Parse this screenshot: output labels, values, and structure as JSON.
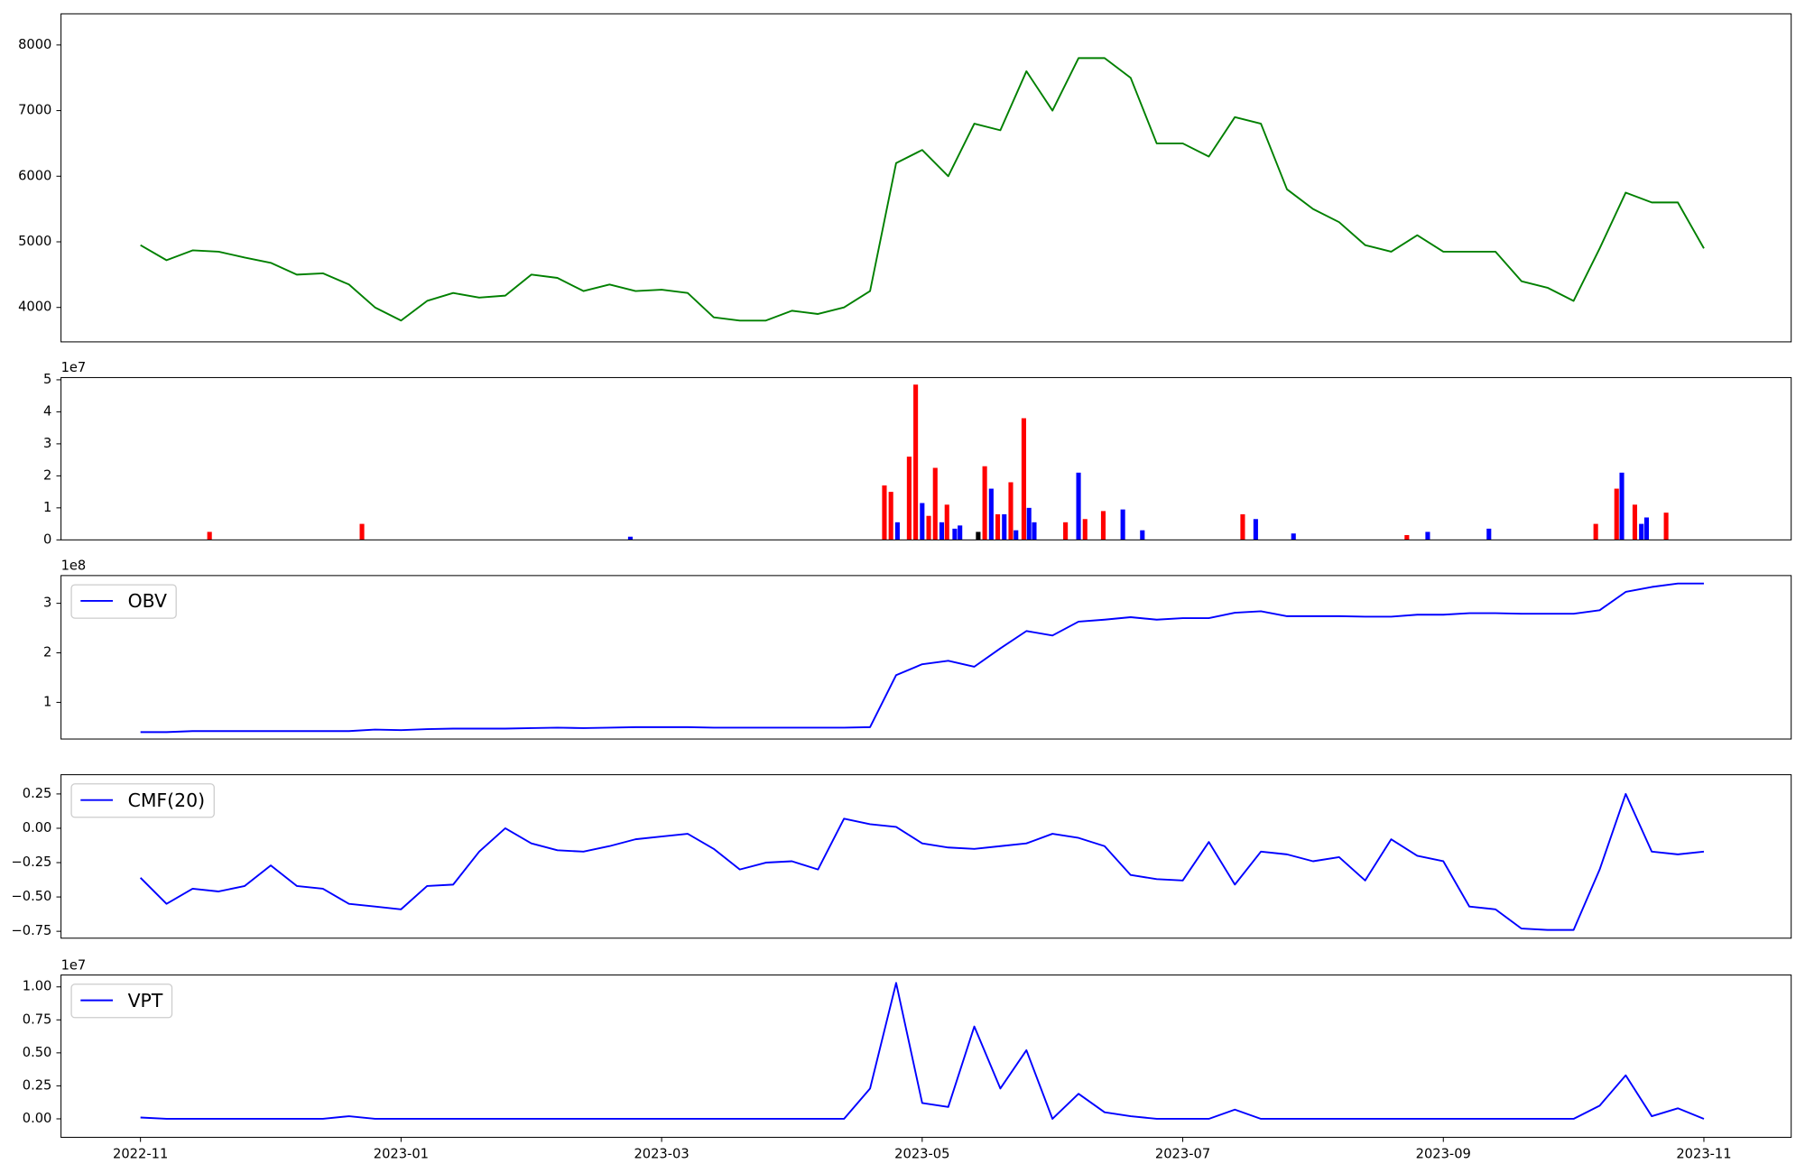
{
  "chart_data": [
    {
      "type": "line",
      "x": [
        0,
        0.2,
        0.4,
        0.6,
        0.8,
        1,
        1.2,
        1.4,
        1.6,
        1.8,
        2,
        2.2,
        2.4,
        2.6,
        2.8,
        3,
        3.2,
        3.4,
        3.6,
        3.8,
        4,
        4.2,
        4.4,
        4.6,
        4.8,
        5,
        5.2,
        5.4,
        5.6,
        5.8,
        6,
        6.2,
        6.4,
        6.6,
        6.8,
        7,
        7.2,
        7.4,
        7.6,
        7.8,
        8,
        8.2,
        8.4,
        8.6,
        8.8,
        9,
        9.2,
        9.4,
        9.6,
        9.8,
        10,
        10.2,
        10.4,
        10.6,
        10.8,
        11,
        11.2,
        11.4,
        11.6,
        11.8,
        12
      ],
      "series": [
        {
          "color": "#008000",
          "values": [
            4950,
            4720,
            4870,
            4850,
            4760,
            4680,
            4500,
            4520,
            4350,
            4000,
            3800,
            4100,
            4220,
            4150,
            4180,
            4500,
            4450,
            4250,
            4350,
            4250,
            4270,
            4220,
            3850,
            3800,
            3800,
            3950,
            3900,
            4000,
            4250,
            6200,
            6400,
            6000,
            6800,
            6700,
            7600,
            7000,
            7800,
            7800,
            7500,
            6500,
            6500,
            6300,
            6900,
            6800,
            5800,
            5500,
            5300,
            4950,
            4850,
            5100,
            4850,
            4850,
            4850,
            4400,
            4300,
            4100,
            4900,
            5750,
            5600,
            5600,
            4900
          ]
        }
      ],
      "xlim": [
        -0.61,
        12.67
      ],
      "ylim": [
        3475,
        8475
      ],
      "yticks": [
        4000,
        5000,
        6000,
        7000,
        8000
      ]
    },
    {
      "type": "bar",
      "offset_label": "1e7",
      "x": [
        0.53,
        1.7,
        3.76,
        5.71,
        5.76,
        5.81,
        5.9,
        5.95,
        6.0,
        6.05,
        6.1,
        6.15,
        6.19,
        6.25,
        6.29,
        6.43,
        6.48,
        6.53,
        6.58,
        6.63,
        6.68,
        6.72,
        6.78,
        6.82,
        6.86,
        7.1,
        7.2,
        7.25,
        7.39,
        7.54,
        7.69,
        8.46,
        8.56,
        8.85,
        9.72,
        9.88,
        10.35,
        11.17,
        11.33,
        11.37,
        11.47,
        11.52,
        11.56,
        11.71
      ],
      "values": [
        0.25,
        0.5,
        0.1,
        1.7,
        1.5,
        0.55,
        2.6,
        4.85,
        1.15,
        0.75,
        2.25,
        0.55,
        1.1,
        0.35,
        0.45,
        0.25,
        2.3,
        1.6,
        0.8,
        0.8,
        1.8,
        0.3,
        3.8,
        1.0,
        0.55,
        0.55,
        2.1,
        0.65,
        0.9,
        0.95,
        0.3,
        0.8,
        0.65,
        0.2,
        0.15,
        0.25,
        0.35,
        0.5,
        1.6,
        2.1,
        1.1,
        0.5,
        0.7,
        0.85
      ],
      "colors": [
        "#ff0000",
        "#ff0000",
        "#0000ff",
        "#ff0000",
        "#ff0000",
        "#0000ff",
        "#ff0000",
        "#ff0000",
        "#0000ff",
        "#ff0000",
        "#ff0000",
        "#0000ff",
        "#ff0000",
        "#0000ff",
        "#0000ff",
        "#000000",
        "#ff0000",
        "#0000ff",
        "#ff0000",
        "#0000ff",
        "#ff0000",
        "#0000ff",
        "#ff0000",
        "#0000ff",
        "#0000ff",
        "#ff0000",
        "#0000ff",
        "#ff0000",
        "#ff0000",
        "#0000ff",
        "#0000ff",
        "#ff0000",
        "#0000ff",
        "#0000ff",
        "#ff0000",
        "#0000ff",
        "#0000ff",
        "#ff0000",
        "#ff0000",
        "#0000ff",
        "#ff0000",
        "#0000ff",
        "#0000ff",
        "#ff0000"
      ],
      "xlim": [
        -0.61,
        12.67
      ],
      "ylim": [
        0,
        5.07
      ],
      "yticks": [
        0,
        1,
        2,
        3,
        4,
        5
      ]
    },
    {
      "type": "line",
      "offset_label": "1e8",
      "legend": "upper left",
      "x": [
        0,
        0.2,
        0.4,
        0.6,
        0.8,
        1,
        1.2,
        1.4,
        1.6,
        1.8,
        2,
        2.2,
        2.4,
        2.6,
        2.8,
        3,
        3.2,
        3.4,
        3.6,
        3.8,
        4,
        4.2,
        4.4,
        4.6,
        4.8,
        5,
        5.2,
        5.4,
        5.6,
        5.8,
        6,
        6.2,
        6.4,
        6.6,
        6.8,
        7,
        7.2,
        7.4,
        7.6,
        7.8,
        8,
        8.2,
        8.4,
        8.6,
        8.8,
        9,
        9.2,
        9.4,
        9.6,
        9.8,
        10,
        10.2,
        10.4,
        10.6,
        10.8,
        11,
        11.2,
        11.4,
        11.6,
        11.8,
        12
      ],
      "series": [
        {
          "name": "OBV",
          "color": "#0000ff",
          "values": [
            0.4,
            0.4,
            0.42,
            0.42,
            0.42,
            0.42,
            0.42,
            0.42,
            0.42,
            0.45,
            0.44,
            0.46,
            0.47,
            0.47,
            0.47,
            0.48,
            0.49,
            0.48,
            0.49,
            0.5,
            0.5,
            0.5,
            0.49,
            0.49,
            0.49,
            0.49,
            0.49,
            0.49,
            0.5,
            1.55,
            1.77,
            1.84,
            1.72,
            2.09,
            2.44,
            2.35,
            2.63,
            2.67,
            2.72,
            2.67,
            2.7,
            2.7,
            2.81,
            2.84,
            2.74,
            2.74,
            2.74,
            2.73,
            2.73,
            2.77,
            2.77,
            2.8,
            2.8,
            2.79,
            2.79,
            2.79,
            2.86,
            3.23,
            3.33,
            3.4,
            3.4
          ]
        }
      ],
      "xlim": [
        -0.61,
        12.67
      ],
      "ylim": [
        0.26,
        3.56
      ],
      "yticks": [
        1,
        2,
        3
      ]
    },
    {
      "type": "line",
      "legend": "upper left",
      "x": [
        0,
        0.2,
        0.4,
        0.6,
        0.8,
        1,
        1.2,
        1.4,
        1.6,
        1.8,
        2,
        2.2,
        2.4,
        2.6,
        2.8,
        3,
        3.2,
        3.4,
        3.6,
        3.8,
        4,
        4.2,
        4.4,
        4.6,
        4.8,
        5,
        5.2,
        5.4,
        5.6,
        5.8,
        6,
        6.2,
        6.4,
        6.6,
        6.8,
        7,
        7.2,
        7.4,
        7.6,
        7.8,
        8,
        8.2,
        8.4,
        8.6,
        8.8,
        9,
        9.2,
        9.4,
        9.6,
        9.8,
        10,
        10.2,
        10.4,
        10.6,
        10.8,
        11,
        11.2,
        11.4,
        11.6,
        11.8,
        12
      ],
      "series": [
        {
          "name": "CMF(20)",
          "color": "#0000ff",
          "values": [
            -0.36,
            -0.55,
            -0.44,
            -0.46,
            -0.42,
            -0.27,
            -0.42,
            -0.44,
            -0.55,
            -0.57,
            -0.59,
            -0.42,
            -0.41,
            -0.17,
            0,
            -0.11,
            -0.16,
            -0.17,
            -0.13,
            -0.08,
            -0.06,
            -0.04,
            -0.15,
            -0.3,
            -0.25,
            -0.24,
            -0.3,
            0.07,
            0.03,
            0.01,
            -0.11,
            -0.14,
            -0.15,
            -0.13,
            -0.11,
            -0.04,
            -0.07,
            -0.13,
            -0.34,
            -0.37,
            -0.38,
            -0.1,
            -0.41,
            -0.17,
            -0.19,
            -0.24,
            -0.21,
            -0.38,
            -0.08,
            -0.2,
            -0.24,
            -0.57,
            -0.59,
            -0.73,
            -0.74,
            -0.74,
            -0.3,
            0.25,
            -0.17,
            -0.19,
            -0.17
          ]
        }
      ],
      "xlim": [
        -0.61,
        12.67
      ],
      "ylim": [
        -0.8,
        0.39
      ],
      "yticks": [
        {
          "value": -0.75,
          "label": "−0.75"
        },
        {
          "value": -0.5,
          "label": "−0.50"
        },
        {
          "value": -0.25,
          "label": "−0.25"
        },
        {
          "value": 0,
          "label": "0.00"
        },
        {
          "value": 0.25,
          "label": "0.25"
        }
      ]
    },
    {
      "type": "line",
      "offset_label": "1e7",
      "legend": "upper left",
      "x": [
        0,
        0.2,
        0.4,
        0.6,
        0.8,
        1,
        1.2,
        1.4,
        1.6,
        1.8,
        2,
        2.2,
        2.4,
        2.6,
        2.8,
        3,
        3.2,
        3.4,
        3.6,
        3.8,
        4,
        4.2,
        4.4,
        4.6,
        4.8,
        5,
        5.2,
        5.4,
        5.6,
        5.8,
        6,
        6.2,
        6.4,
        6.6,
        6.8,
        7,
        7.2,
        7.4,
        7.6,
        7.8,
        8,
        8.2,
        8.4,
        8.6,
        8.8,
        9,
        9.2,
        9.4,
        9.6,
        9.8,
        10,
        10.2,
        10.4,
        10.6,
        10.8,
        11,
        11.2,
        11.4,
        11.6,
        11.8,
        12
      ],
      "series": [
        {
          "name": "VPT",
          "color": "#0000ff",
          "values": [
            0.01,
            0,
            0,
            0,
            0,
            0,
            0,
            0,
            0.02,
            0,
            0,
            0,
            0,
            0,
            0,
            0,
            0,
            0,
            0,
            0,
            0,
            0,
            0,
            0,
            0,
            0,
            0,
            0,
            0.23,
            1.03,
            0.12,
            0.09,
            0.7,
            0.23,
            0.52,
            0,
            0.19,
            0.05,
            0.02,
            0,
            0,
            0,
            0.07,
            0,
            0,
            0,
            0,
            0,
            0,
            0,
            0,
            0,
            0,
            0,
            0,
            0,
            0.1,
            0.33,
            0.02,
            0.08,
            0
          ]
        }
      ],
      "xlim": [
        -0.61,
        12.67
      ],
      "ylim": [
        -0.14,
        1.09
      ],
      "yticks": [
        {
          "value": 0,
          "label": "0.00"
        },
        {
          "value": 0.25,
          "label": "0.25"
        },
        {
          "value": 0.5,
          "label": "0.50"
        },
        {
          "value": 0.75,
          "label": "0.75"
        },
        {
          "value": 1,
          "label": "1.00"
        }
      ],
      "xticks": [
        {
          "value": 0,
          "label": "2022-11"
        },
        {
          "value": 2,
          "label": "2023-01"
        },
        {
          "value": 4,
          "label": "2023-03"
        },
        {
          "value": 6,
          "label": "2023-05"
        },
        {
          "value": 8,
          "label": "2023-07"
        },
        {
          "value": 10,
          "label": "2023-09"
        },
        {
          "value": 12,
          "label": "2023-11"
        }
      ]
    }
  ]
}
